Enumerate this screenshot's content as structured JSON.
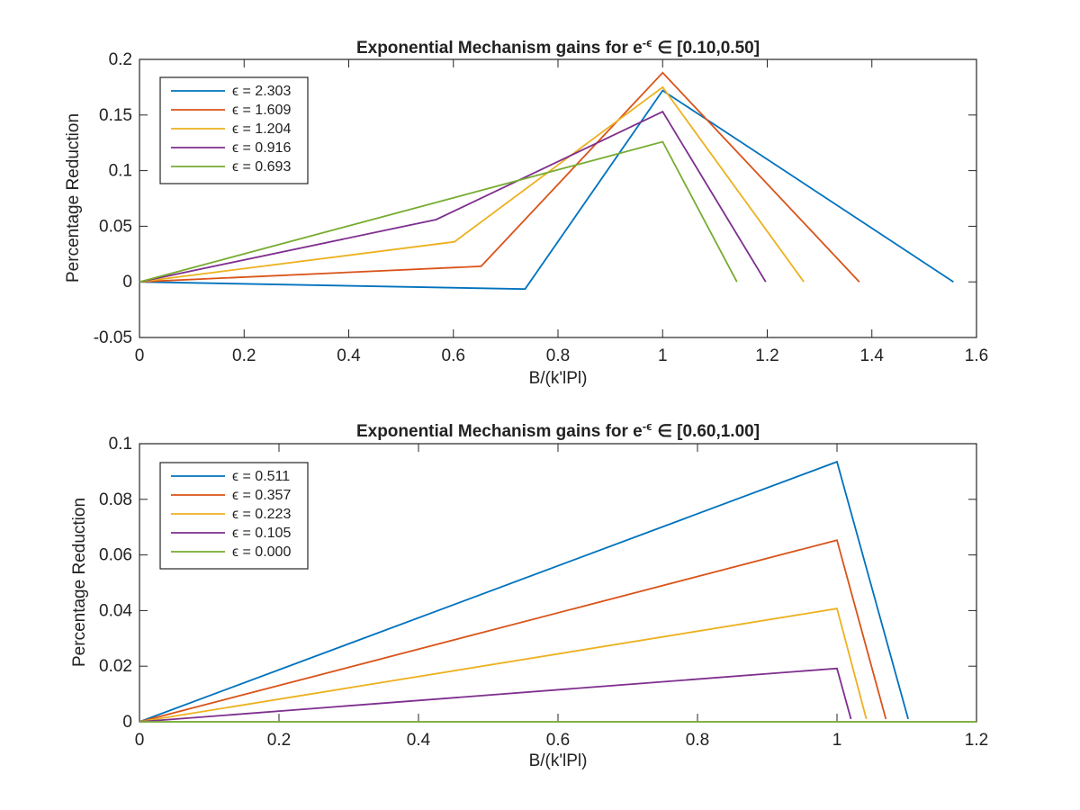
{
  "chart_data": [
    {
      "type": "line",
      "title": "Exponential Mechanism gains for e",
      "title_superscript": "-ϵ",
      "title_range": "∈ [0.10,0.50]",
      "xlabel": "B/(k'lPl)",
      "ylabel": "Percentage Reduction",
      "xlim": [
        0,
        1.6
      ],
      "ylim": [
        -0.05,
        0.2
      ],
      "xticks": [
        0,
        0.2,
        0.4,
        0.6,
        0.8,
        1,
        1.2,
        1.4,
        1.6
      ],
      "xtick_labels": [
        "0",
        "0.2",
        "0.4",
        "0.6",
        "0.8",
        "1",
        "1.2",
        "1.4",
        "1.6"
      ],
      "yticks": [
        -0.05,
        0,
        0.05,
        0.1,
        0.15,
        0.2
      ],
      "ytick_labels": [
        "-0.05",
        "0",
        "0.05",
        "0.1",
        "0.15",
        "0.2"
      ],
      "legend_position": "top-left",
      "series": [
        {
          "name": "ϵ = 2.303",
          "color": "#0072BD",
          "x": [
            0,
            0.737,
            1.0,
            1.556
          ],
          "y": [
            0,
            -0.0065,
            0.172,
            0
          ]
        },
        {
          "name": "ϵ = 1.609",
          "color": "#D95319",
          "x": [
            0,
            0.653,
            1.0,
            1.376
          ],
          "y": [
            0,
            0.014,
            0.188,
            0
          ]
        },
        {
          "name": "ϵ = 1.204",
          "color": "#EDB120",
          "x": [
            0,
            0.602,
            1.0,
            1.27
          ],
          "y": [
            0,
            0.036,
            0.175,
            0
          ]
        },
        {
          "name": "ϵ = 0.916",
          "color": "#7E2F8E",
          "x": [
            0,
            0.567,
            1.0,
            1.197
          ],
          "y": [
            0,
            0.056,
            0.153,
            0
          ]
        },
        {
          "name": "ϵ = 0.693",
          "color": "#77AC30",
          "x": [
            0,
            1.0,
            1.142
          ],
          "y": [
            0,
            0.126,
            0
          ]
        }
      ]
    },
    {
      "type": "line",
      "title": "Exponential Mechanism gains for e",
      "title_superscript": "-ϵ",
      "title_range": "∈ [0.60,1.00]",
      "xlabel": "B/(k'lPl)",
      "ylabel": "Percentage Reduction",
      "xlim": [
        0,
        1.2
      ],
      "ylim": [
        0,
        0.1
      ],
      "xticks": [
        0,
        0.2,
        0.4,
        0.6,
        0.8,
        1,
        1.2
      ],
      "xtick_labels": [
        "0",
        "0.2",
        "0.4",
        "0.6",
        "0.8",
        "1",
        "1.2"
      ],
      "yticks": [
        0,
        0.02,
        0.04,
        0.06,
        0.08,
        0.1
      ],
      "ytick_labels": [
        "0",
        "0.02",
        "0.04",
        "0.06",
        "0.08",
        "0.1"
      ],
      "legend_position": "top-left",
      "series": [
        {
          "name": "ϵ = 0.511",
          "color": "#0072BD",
          "x": [
            0,
            1.0,
            1.102
          ],
          "y": [
            0,
            0.0935,
            0.001
          ]
        },
        {
          "name": "ϵ = 0.357",
          "color": "#D95319",
          "x": [
            0,
            1.0,
            1.07
          ],
          "y": [
            0,
            0.0653,
            0.001
          ]
        },
        {
          "name": "ϵ = 0.223",
          "color": "#EDB120",
          "x": [
            0,
            1.0,
            1.042
          ],
          "y": [
            0,
            0.0407,
            0.001
          ]
        },
        {
          "name": "ϵ = 0.105",
          "color": "#7E2F8E",
          "x": [
            0,
            1.0,
            1.02
          ],
          "y": [
            0,
            0.0192,
            0.001
          ]
        },
        {
          "name": "ϵ = 0.000",
          "color": "#77AC30",
          "x": [
            0,
            1.2
          ],
          "y": [
            0,
            0
          ]
        }
      ]
    }
  ]
}
